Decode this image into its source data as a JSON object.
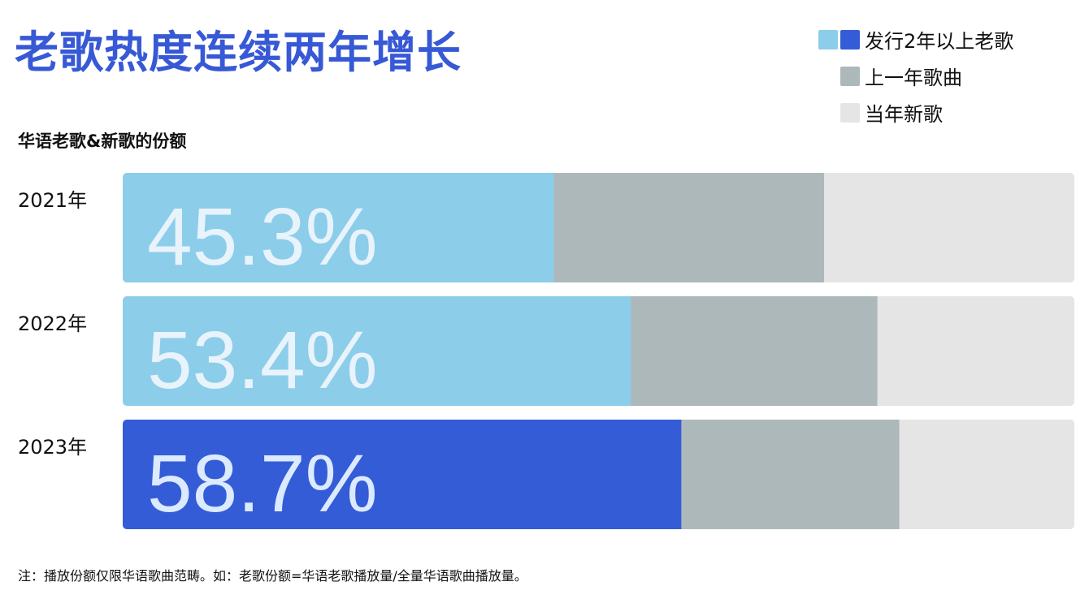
{
  "title": "老歌热度连续两年增长",
  "footnote": "注：播放份额仅限华语歌曲范畴。如：老歌份额=华语老歌播放量/全量华语歌曲播放量。",
  "colors": {
    "old_light": "#8ccdea",
    "old_dark": "#345cd6",
    "last_year": "#adb8bb",
    "new_song": "#e5e5e5",
    "value_label_light": "#e8f3fb",
    "value_label_dark": "#dceaff"
  },
  "chart_data": {
    "type": "bar",
    "orientation": "horizontal",
    "stacked": true,
    "percent": true,
    "title": "老歌热度连续两年增长",
    "subtitle": "华语老歌&新歌的份额",
    "categories": [
      "2021年",
      "2022年",
      "2023年"
    ],
    "legend_position": "top-right",
    "grid": false,
    "xlim": [
      0,
      100
    ],
    "series": [
      {
        "name": "发行2年以上老歌",
        "values": [
          45.3,
          53.4,
          58.7
        ],
        "labels": [
          "45.3%",
          "53.4%",
          "58.7%"
        ],
        "colors": [
          "#8ccdea",
          "#8ccdea",
          "#345cd6"
        ]
      },
      {
        "name": "上一年歌曲",
        "values": [
          28.4,
          25.9,
          22.9
        ],
        "color": "#adb8bb"
      },
      {
        "name": "当年新歌",
        "values": [
          26.3,
          20.7,
          18.4
        ],
        "color": "#e5e5e5"
      }
    ]
  }
}
